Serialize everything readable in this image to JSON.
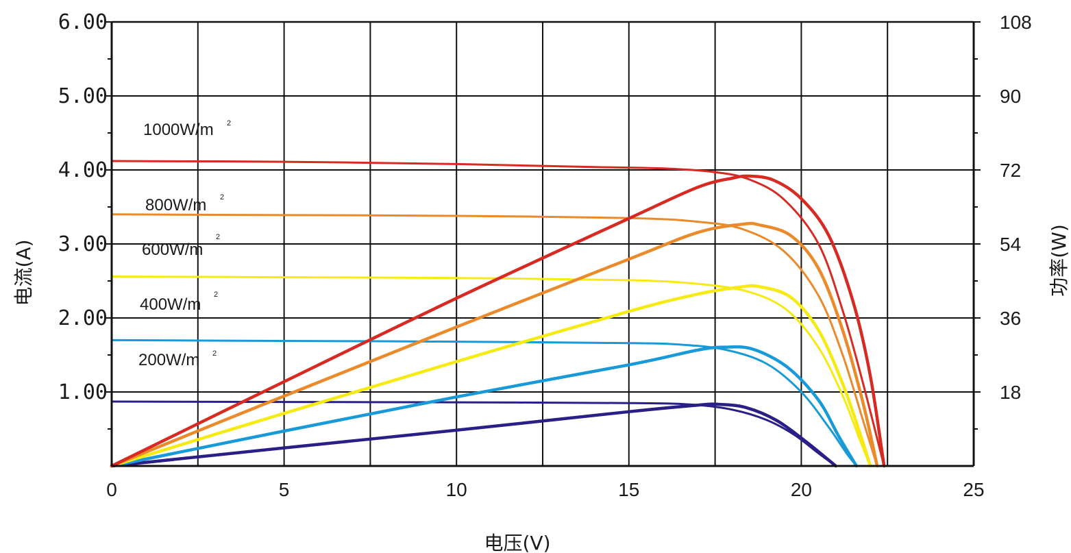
{
  "chart_data": {
    "type": "line",
    "x_axis": {
      "label": "电压(V)",
      "range": [
        0,
        25
      ],
      "ticks": [
        0,
        5,
        10,
        15,
        20,
        25
      ],
      "tick_labels": [
        "0",
        "5",
        "10",
        "15",
        "20",
        "25"
      ],
      "minor_gridlines": [
        2.5,
        7.5,
        12.5,
        17.5,
        22.5
      ]
    },
    "y_axis_left": {
      "label": "电流(A)",
      "range": [
        0,
        6
      ],
      "ticks": [
        1,
        2,
        3,
        4,
        5,
        6
      ],
      "tick_labels": [
        "1.00",
        "2.00",
        "3.00",
        "4.00",
        "5.00",
        "6.00"
      ]
    },
    "y_axis_right": {
      "label": "功率(W)",
      "range": [
        0,
        108
      ],
      "ticks": [
        18,
        36,
        54,
        72,
        90,
        108
      ],
      "tick_labels": [
        "18",
        "36",
        "54",
        "72",
        "90",
        "108"
      ]
    },
    "grid": true,
    "series": [
      {
        "name": "1000W/m²",
        "color": "#d62a22",
        "iv_points": [
          [
            0,
            4.12
          ],
          [
            5,
            4.11
          ],
          [
            10,
            4.08
          ],
          [
            14,
            4.04
          ],
          [
            16,
            4.02
          ],
          [
            17.5,
            3.97
          ],
          [
            18.5,
            3.87
          ],
          [
            19.5,
            3.6
          ],
          [
            20.5,
            3.0
          ],
          [
            21.2,
            2.1
          ],
          [
            21.8,
            1.1
          ],
          [
            22.4,
            0
          ]
        ],
        "pv_points": [
          [
            0,
            0
          ],
          [
            5,
            20.5
          ],
          [
            10,
            40.8
          ],
          [
            15,
            60.2
          ],
          [
            17,
            67.8
          ],
          [
            18,
            70.0
          ],
          [
            18.5,
            70.5
          ],
          [
            19.2,
            69.5
          ],
          [
            20,
            65.0
          ],
          [
            20.8,
            56.0
          ],
          [
            21.5,
            40.0
          ],
          [
            22,
            22.0
          ],
          [
            22.4,
            0
          ]
        ]
      },
      {
        "name": "800W/m²",
        "color": "#ea8a2a",
        "iv_points": [
          [
            0,
            3.4
          ],
          [
            5,
            3.39
          ],
          [
            10,
            3.38
          ],
          [
            15,
            3.35
          ],
          [
            17,
            3.3
          ],
          [
            18.3,
            3.2
          ],
          [
            19.5,
            2.9
          ],
          [
            20.5,
            2.3
          ],
          [
            21.2,
            1.5
          ],
          [
            21.8,
            0.6
          ],
          [
            22.2,
            0
          ]
        ],
        "pv_points": [
          [
            0,
            0
          ],
          [
            5,
            17.0
          ],
          [
            10,
            33.8
          ],
          [
            15,
            50.3
          ],
          [
            17,
            56.8
          ],
          [
            18.3,
            58.8
          ],
          [
            18.8,
            58.6
          ],
          [
            19.7,
            56.0
          ],
          [
            20.5,
            48.0
          ],
          [
            21.2,
            33.0
          ],
          [
            21.8,
            15.0
          ],
          [
            22.2,
            0
          ]
        ]
      },
      {
        "name": "600W/m²",
        "color": "#f5ea12",
        "iv_points": [
          [
            0,
            2.56
          ],
          [
            5,
            2.55
          ],
          [
            10,
            2.54
          ],
          [
            15,
            2.51
          ],
          [
            17,
            2.46
          ],
          [
            18.5,
            2.35
          ],
          [
            19.6,
            2.1
          ],
          [
            20.5,
            1.6
          ],
          [
            21.2,
            0.95
          ],
          [
            21.7,
            0.35
          ],
          [
            22.0,
            0
          ]
        ],
        "pv_points": [
          [
            0,
            0
          ],
          [
            5,
            12.8
          ],
          [
            10,
            25.4
          ],
          [
            15,
            37.6
          ],
          [
            17,
            41.8
          ],
          [
            18.2,
            43.5
          ],
          [
            18.8,
            43.6
          ],
          [
            19.7,
            41.0
          ],
          [
            20.5,
            33.0
          ],
          [
            21.2,
            20.0
          ],
          [
            21.7,
            8.0
          ],
          [
            22.0,
            0
          ]
        ]
      },
      {
        "name": "400W/m²",
        "color": "#1899d8",
        "iv_points": [
          [
            0,
            1.7
          ],
          [
            5,
            1.69
          ],
          [
            10,
            1.68
          ],
          [
            15,
            1.66
          ],
          [
            16.5,
            1.64
          ],
          [
            17.8,
            1.57
          ],
          [
            19,
            1.38
          ],
          [
            20,
            1.0
          ],
          [
            20.8,
            0.52
          ],
          [
            21.3,
            0.18
          ],
          [
            21.6,
            0
          ]
        ],
        "pv_points": [
          [
            0,
            0
          ],
          [
            5,
            8.5
          ],
          [
            10,
            16.8
          ],
          [
            15,
            24.6
          ],
          [
            17,
            28.2
          ],
          [
            17.8,
            28.9
          ],
          [
            18.6,
            28.4
          ],
          [
            19.6,
            24.0
          ],
          [
            20.5,
            16.0
          ],
          [
            21.1,
            7.0
          ],
          [
            21.6,
            0
          ]
        ]
      },
      {
        "name": "200W/m²",
        "color": "#2a1f86",
        "iv_points": [
          [
            0,
            0.87
          ],
          [
            5,
            0.865
          ],
          [
            10,
            0.86
          ],
          [
            15,
            0.85
          ],
          [
            16.8,
            0.83
          ],
          [
            18,
            0.76
          ],
          [
            19,
            0.62
          ],
          [
            19.8,
            0.42
          ],
          [
            20.5,
            0.17
          ],
          [
            21.0,
            0
          ]
        ],
        "pv_points": [
          [
            0,
            0
          ],
          [
            5,
            4.4
          ],
          [
            10,
            8.7
          ],
          [
            15,
            13.2
          ],
          [
            17.0,
            14.8
          ],
          [
            17.6,
            15.0
          ],
          [
            18.4,
            14.2
          ],
          [
            19.3,
            11.0
          ],
          [
            20.2,
            5.5
          ],
          [
            21.0,
            0
          ]
        ]
      }
    ]
  },
  "labels": {
    "irr_1000": "1000W/m",
    "irr_800": "800W/m",
    "irr_600": "600W/m",
    "irr_400": "400W/m",
    "irr_200": "200W/m",
    "sup": "2"
  }
}
